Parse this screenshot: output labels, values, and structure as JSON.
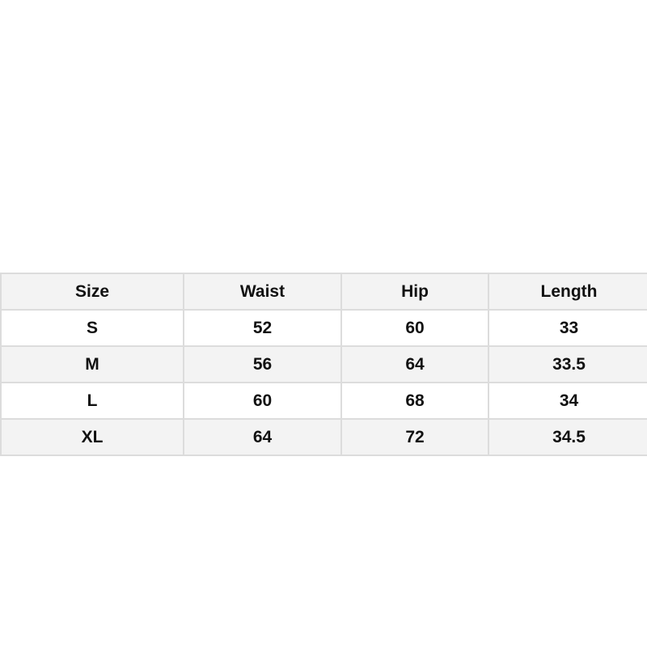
{
  "table": {
    "headers": [
      "Size",
      "Waist",
      "Hip",
      "Length"
    ],
    "rows": [
      [
        "S",
        "52",
        "60",
        "33"
      ],
      [
        "M",
        "56",
        "64",
        "33.5"
      ],
      [
        "L",
        "60",
        "68",
        "34"
      ],
      [
        "XL",
        "64",
        "72",
        "34.5"
      ]
    ]
  }
}
